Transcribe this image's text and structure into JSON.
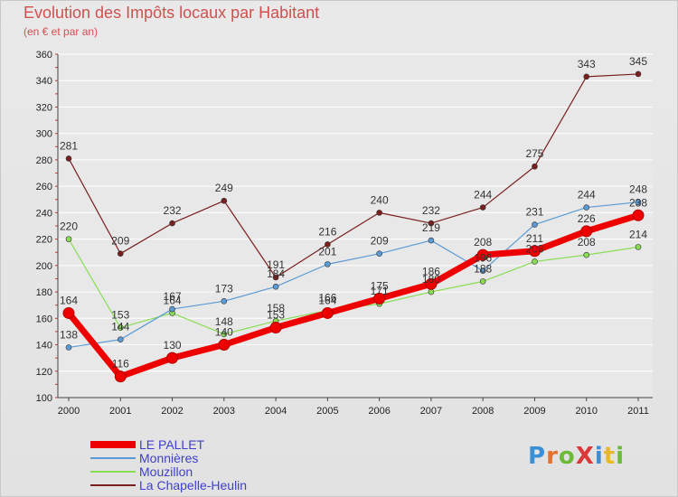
{
  "title": "Evolution des Impôts locaux par Habitant",
  "subtitle": "(en € et par an)",
  "logo": {
    "text": "ProXiti",
    "colors": [
      "#3a8fd6",
      "#e8702a",
      "#6dbb3a",
      "#d83a3a",
      "#3a8fd6",
      "#e8b82a",
      "#6dbb3a"
    ]
  },
  "chart_data": {
    "type": "line",
    "title": "Evolution des Impôts locaux par Habitant",
    "ylabel": "(en € et par an)",
    "xlabel": "",
    "ylim": [
      100,
      360
    ],
    "ytick_step": 20,
    "grid": "horizontal",
    "legend_position": "bottom-left",
    "categories": [
      "2000",
      "2001",
      "2002",
      "2003",
      "2004",
      "2005",
      "2006",
      "2007",
      "2008",
      "2009",
      "2010",
      "2011"
    ],
    "series": [
      {
        "name": "La Chapelle-Heulin",
        "color": "#7a1f1f",
        "width": 1.2,
        "marker": 3,
        "values": [
          281,
          209,
          232,
          249,
          191,
          216,
          240,
          232,
          244,
          275,
          343,
          345
        ]
      },
      {
        "name": "Mouzillon",
        "color": "#88dd55",
        "width": 1.2,
        "marker": 3,
        "values": [
          220,
          153,
          164,
          148,
          158,
          166,
          171,
          180,
          188,
          203,
          208,
          214
        ]
      },
      {
        "name": "Monnières",
        "color": "#5b9bd5",
        "width": 1.2,
        "marker": 3,
        "values": [
          138,
          144,
          167,
          173,
          184,
          201,
          209,
          219,
          196,
          231,
          244,
          248
        ]
      },
      {
        "name": "LE PALLET",
        "color": "#ee0000",
        "width": 7,
        "marker": 6,
        "values": [
          164,
          116,
          130,
          140,
          153,
          164,
          175,
          186,
          208,
          211,
          226,
          238
        ]
      }
    ],
    "legend_order": [
      "LE PALLET",
      "Monnières",
      "Mouzillon",
      "La Chapelle-Heulin"
    ]
  }
}
